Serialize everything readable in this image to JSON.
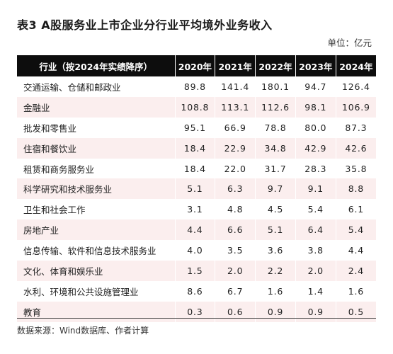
{
  "title": "表3 A股服务业上市企业分行业平均境外业务收入",
  "unit": "单位：亿元",
  "table": {
    "headers": [
      "行业（按2024年实绩降序）",
      "2020年",
      "2021年",
      "2022年",
      "2023年",
      "2024年"
    ],
    "rows": [
      {
        "name": "交通运输、仓储和邮政业",
        "values": [
          "89.8",
          "141.4",
          "180.1",
          "94.7",
          "126.4"
        ]
      },
      {
        "name": "金融业",
        "values": [
          "108.8",
          "113.1",
          "112.6",
          "98.1",
          "106.9"
        ]
      },
      {
        "name": "批发和零售业",
        "values": [
          "95.1",
          "66.9",
          "78.8",
          "80.0",
          "87.3"
        ]
      },
      {
        "name": "住宿和餐饮业",
        "values": [
          "18.4",
          "22.9",
          "34.8",
          "42.9",
          "42.6"
        ]
      },
      {
        "name": "租赁和商务服务业",
        "values": [
          "18.4",
          "22.0",
          "31.7",
          "28.3",
          "35.8"
        ]
      },
      {
        "name": "科学研究和技术服务业",
        "values": [
          "5.1",
          "6.3",
          "9.7",
          "9.1",
          "8.8"
        ]
      },
      {
        "name": "卫生和社会工作",
        "values": [
          "3.1",
          "4.8",
          "4.5",
          "5.4",
          "6.1"
        ]
      },
      {
        "name": "房地产业",
        "values": [
          "4.4",
          "6.6",
          "5.1",
          "6.4",
          "5.4"
        ]
      },
      {
        "name": "信息传输、软件和信息技术服务业",
        "values": [
          "4.0",
          "3.5",
          "3.6",
          "3.8",
          "4.4"
        ]
      },
      {
        "name": "文化、体育和娱乐业",
        "values": [
          "1.5",
          "2.0",
          "2.2",
          "2.0",
          "2.4"
        ]
      },
      {
        "name": "水利、环境和公共设施管理业",
        "values": [
          "8.6",
          "6.7",
          "1.6",
          "1.4",
          "1.6"
        ]
      },
      {
        "name": "教育",
        "values": [
          "0.3",
          "0.6",
          "0.9",
          "0.9",
          "0.5"
        ]
      }
    ]
  },
  "source": "数据来源：Wind数据库、作者计算",
  "colors": {
    "header_bg": "#0d0d0d",
    "header_text": "#ffffff",
    "shaded_row": "#fbeeee"
  }
}
